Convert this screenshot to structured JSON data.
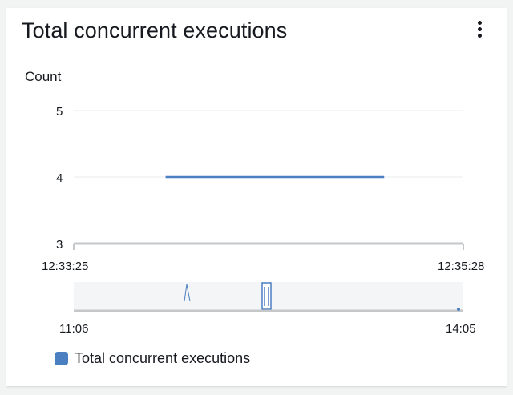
{
  "widget": {
    "title": "Total concurrent executions",
    "menu_icon": "vertical-ellipsis-icon"
  },
  "colors": {
    "series": "#4a7fc1",
    "axis": "#c6c7c8",
    "grid": "#e9ebed",
    "navigator_bg": "#f4f5f6"
  },
  "chart_data": {
    "type": "line",
    "ylabel": "Count",
    "y_ticks": [
      "5",
      "4",
      "3"
    ],
    "ylim": [
      3,
      5
    ],
    "x_tick_labels": [
      "12:33:25",
      "12:35:28"
    ],
    "grid": true,
    "legend_placement": "bottom-left",
    "series": [
      {
        "name": "Total concurrent executions",
        "points": [
          {
            "x": "12:33:54",
            "y": 4
          },
          {
            "x": "12:35:03",
            "y": 4
          }
        ]
      }
    ],
    "navigator": {
      "tick_labels": [
        "11:06",
        "14:05"
      ]
    }
  }
}
